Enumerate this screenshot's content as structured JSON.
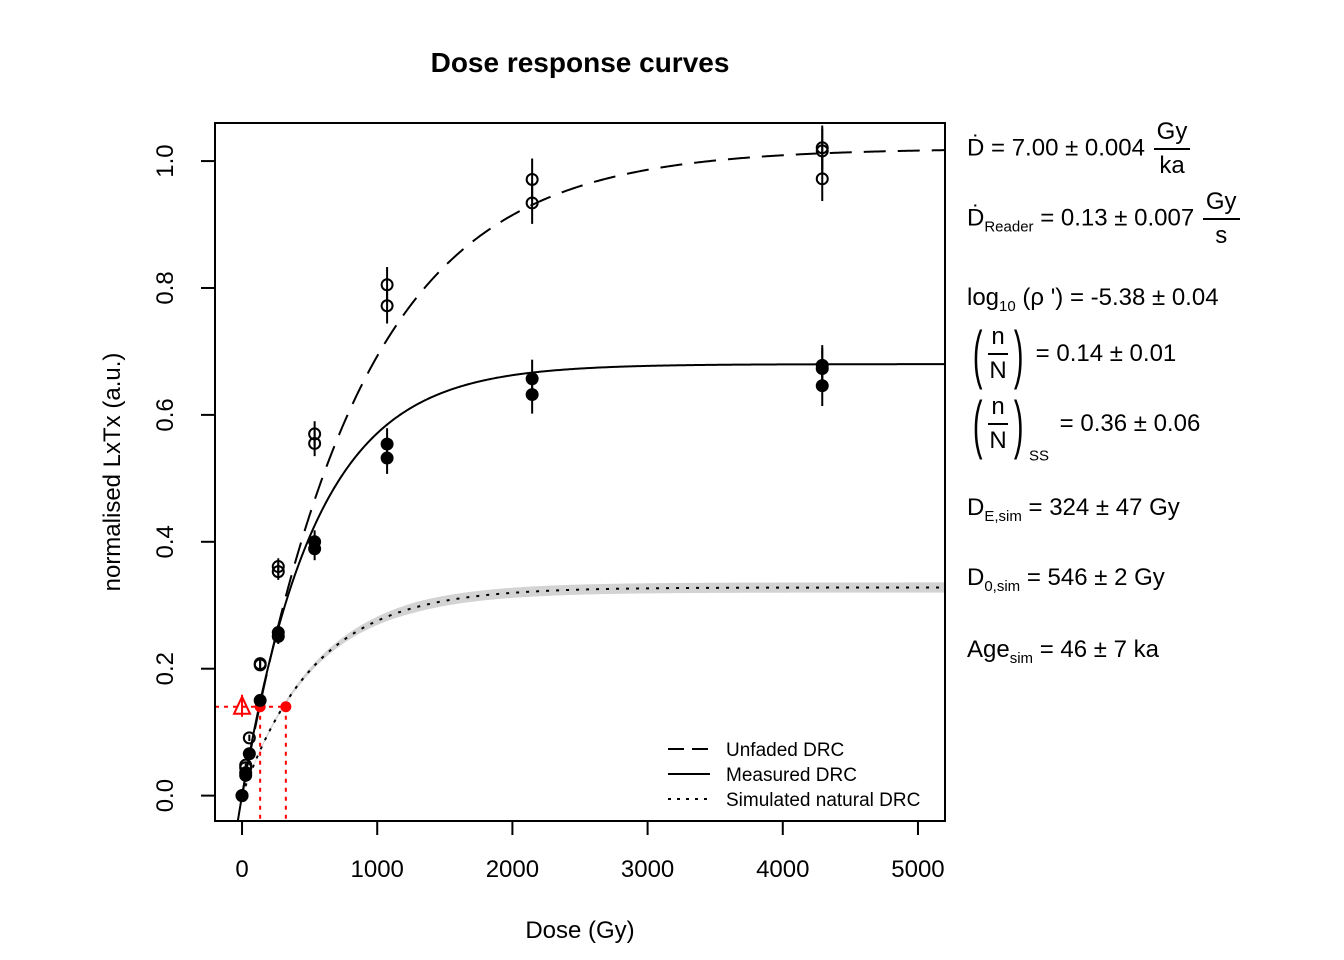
{
  "chart_data": {
    "type": "scatter",
    "title": "Dose response curves",
    "xlabel": "Dose (Gy)",
    "ylabel": "normalised LxTx (a.u.)",
    "xlim": [
      -200,
      5200
    ],
    "ylim": [
      -0.04,
      1.06
    ],
    "xticks": [
      "0",
      "1000",
      "2000",
      "3000",
      "4000",
      "5000"
    ],
    "yticks": [
      "0.0",
      "0.2",
      "0.4",
      "0.6",
      "0.8",
      "1.0"
    ],
    "legend_position": "bottom-right",
    "legend": [
      {
        "label": "Unfaded DRC",
        "style": "dashed"
      },
      {
        "label": "Measured DRC",
        "style": "solid"
      },
      {
        "label": "Simulated natural DRC",
        "style": "dotted"
      }
    ],
    "series": [
      {
        "name": "Unfaded DRC",
        "marker": "open-circle",
        "curve": {
          "a": 1.02,
          "D0": 880
        },
        "points": [
          {
            "x": 0,
            "y": 0.0,
            "err": 0.0
          },
          {
            "x": 27,
            "y": 0.048,
            "err": 0.003
          },
          {
            "x": 27,
            "y": 0.044,
            "err": 0.003
          },
          {
            "x": 54,
            "y": 0.091,
            "err": 0.005
          },
          {
            "x": 134,
            "y": 0.208,
            "err": 0.009
          },
          {
            "x": 134,
            "y": 0.206,
            "err": 0.009
          },
          {
            "x": 268,
            "y": 0.361,
            "err": 0.013
          },
          {
            "x": 268,
            "y": 0.353,
            "err": 0.013
          },
          {
            "x": 537,
            "y": 0.57,
            "err": 0.02
          },
          {
            "x": 537,
            "y": 0.555,
            "err": 0.02
          },
          {
            "x": 1073,
            "y": 0.805,
            "err": 0.028
          },
          {
            "x": 1073,
            "y": 0.772,
            "err": 0.028
          },
          {
            "x": 2146,
            "y": 0.971,
            "err": 0.033
          },
          {
            "x": 2146,
            "y": 0.934,
            "err": 0.033
          },
          {
            "x": 4292,
            "y": 1.021,
            "err": 0.035
          },
          {
            "x": 4292,
            "y": 1.016,
            "err": 0.035
          },
          {
            "x": 4292,
            "y": 0.972,
            "err": 0.035
          }
        ]
      },
      {
        "name": "Measured DRC",
        "marker": "filled-circle",
        "curve": {
          "a": 0.68,
          "D0": 546
        },
        "points": [
          {
            "x": 0,
            "y": 0.0,
            "err": 0.0
          },
          {
            "x": 27,
            "y": 0.036,
            "err": 0.003
          },
          {
            "x": 27,
            "y": 0.032,
            "err": 0.003
          },
          {
            "x": 54,
            "y": 0.066,
            "err": 0.005
          },
          {
            "x": 134,
            "y": 0.15,
            "err": 0.008
          },
          {
            "x": 268,
            "y": 0.257,
            "err": 0.012
          },
          {
            "x": 268,
            "y": 0.251,
            "err": 0.012
          },
          {
            "x": 537,
            "y": 0.4,
            "err": 0.018
          },
          {
            "x": 537,
            "y": 0.389,
            "err": 0.018
          },
          {
            "x": 1073,
            "y": 0.554,
            "err": 0.025
          },
          {
            "x": 1073,
            "y": 0.532,
            "err": 0.025
          },
          {
            "x": 2146,
            "y": 0.657,
            "err": 0.03
          },
          {
            "x": 2146,
            "y": 0.632,
            "err": 0.03
          },
          {
            "x": 4292,
            "y": 0.678,
            "err": 0.032
          },
          {
            "x": 4292,
            "y": 0.673,
            "err": 0.032
          },
          {
            "x": 4292,
            "y": 0.646,
            "err": 0.032
          }
        ]
      },
      {
        "name": "Simulated natural DRC",
        "marker": "none",
        "curve": {
          "a": 0.328,
          "D0": 546,
          "band": 0.008
        }
      }
    ],
    "natural": {
      "lxtx": 0.14,
      "triangle_x": 0,
      "measured_intersect_x": 134,
      "simulated_intersect_x": 324
    },
    "colors": {
      "natural": "#ff0000",
      "band": "#d3d3d3",
      "ink": "#000000"
    }
  },
  "annotations": {
    "dose_rate": {
      "lhs": "Ḋ",
      "value": "= 7.00 ± 0.004",
      "unit_num": "Gy",
      "unit_den": "ka"
    },
    "reader_rate": {
      "lhs": "Ḋ",
      "sub": "Reader",
      "value": "= 0.13 ± 0.007",
      "unit_num": "Gy",
      "unit_den": "s"
    },
    "rho": {
      "prefix": "log",
      "sub": "10",
      "mid": " (ρ ') = -5.38 ± 0.04"
    },
    "nN": {
      "num": "n",
      "den": "N",
      "value": "= 0.14 ± 0.01"
    },
    "nN_ss": {
      "num": "n",
      "den": "N",
      "sub": "SS",
      "value": "= 0.36 ± 0.06"
    },
    "de_sim": {
      "lhs": "D",
      "sub": "E,sim",
      "value": " = 324 ± 47 Gy"
    },
    "d0_sim": {
      "lhs": "D",
      "sub": "0,sim",
      "value": " = 546 ± 2 Gy"
    },
    "age_sim": {
      "lhs": "Age",
      "sub": "sim",
      "value": " = 46 ± 7 ka"
    }
  }
}
